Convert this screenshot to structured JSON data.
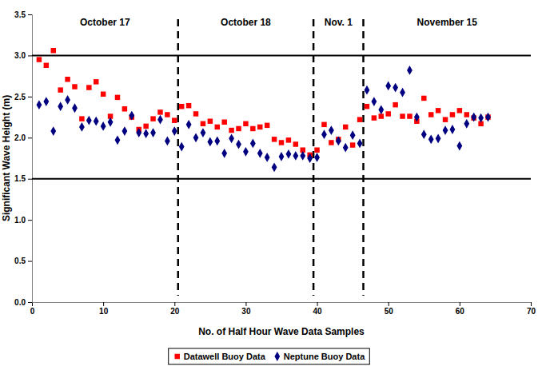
{
  "chart_data": {
    "type": "scatter",
    "x_label": "No. of Half Hour Wave Data Samples",
    "y_label": "Significant Wave Height (m)",
    "x": [
      1,
      2,
      3,
      4,
      5,
      6,
      7,
      8,
      9,
      10,
      11,
      12,
      13,
      14,
      15,
      16,
      17,
      18,
      19,
      20,
      21,
      22,
      23,
      24,
      25,
      26,
      27,
      28,
      29,
      30,
      31,
      32,
      33,
      34,
      35,
      36,
      37,
      38,
      39,
      40,
      41,
      42,
      43,
      44,
      45,
      46,
      47,
      48,
      49,
      50,
      51,
      52,
      53,
      54,
      55,
      56,
      57,
      58,
      59,
      60,
      61,
      62,
      63,
      64
    ],
    "series": [
      {
        "name": "Datawell Buoy Data",
        "color": "#ff0000",
        "marker": "square",
        "values": [
          2.95,
          2.88,
          3.06,
          2.58,
          2.71,
          2.62,
          2.23,
          2.61,
          2.68,
          2.53,
          2.26,
          2.49,
          2.35,
          2.25,
          2.1,
          2.14,
          2.23,
          2.31,
          2.28,
          2.21,
          2.38,
          2.39,
          2.29,
          2.17,
          2.2,
          2.13,
          2.19,
          2.09,
          2.11,
          2.17,
          2.11,
          2.13,
          2.15,
          1.98,
          1.94,
          1.97,
          1.92,
          1.85,
          1.79,
          1.85,
          2.16,
          1.94,
          1.98,
          2.13,
          1.91,
          2.22,
          2.38,
          2.24,
          2.26,
          2.29,
          2.4,
          2.26,
          2.26,
          2.2,
          2.48,
          2.28,
          2.33,
          2.22,
          2.28,
          2.33,
          2.28,
          2.24,
          2.17,
          2.25
        ]
      },
      {
        "name": "Neptune Buoy Data",
        "color": "#000080",
        "marker": "diamond",
        "values": [
          2.4,
          2.44,
          2.08,
          2.38,
          2.46,
          2.36,
          2.13,
          2.21,
          2.2,
          2.14,
          2.19,
          1.97,
          2.08,
          2.27,
          2.06,
          2.05,
          2.06,
          2.22,
          1.96,
          2.08,
          1.89,
          2.16,
          2.0,
          2.06,
          1.95,
          1.96,
          1.81,
          1.99,
          1.92,
          1.83,
          1.93,
          1.81,
          1.76,
          1.64,
          1.77,
          1.8,
          1.78,
          1.78,
          1.75,
          1.76,
          2.04,
          2.09,
          1.96,
          1.88,
          2.03,
          1.93,
          2.58,
          2.44,
          2.34,
          2.63,
          2.61,
          2.55,
          2.82,
          2.25,
          2.04,
          1.98,
          1.99,
          2.09,
          2.1,
          1.9,
          2.17,
          2.25,
          2.24,
          2.25
        ]
      }
    ],
    "xlim": [
      0,
      70
    ],
    "xticks": [
      0,
      10,
      20,
      30,
      40,
      50,
      60,
      70
    ],
    "ylim": [
      0,
      3.5
    ],
    "yticks": [
      {
        "value": 0,
        "label": "0.0"
      },
      {
        "value": 0.5,
        "label": "0.5"
      },
      {
        "value": 1,
        "label": "1.0"
      },
      {
        "value": 1.5,
        "label": "1.5"
      },
      {
        "value": 2,
        "label": "2.0"
      },
      {
        "value": 2.5,
        "label": "2.5"
      },
      {
        "value": 3,
        "label": "3.0"
      },
      {
        "value": 3.5,
        "label": "3.5"
      }
    ],
    "hlines": [
      1.5,
      3.0
    ],
    "vlines": [
      20.5,
      39.5,
      46.5
    ],
    "periods": [
      "October 17",
      "October 18",
      "Nov. 1",
      "November 15"
    ],
    "grid": false,
    "legend": "bottom"
  }
}
